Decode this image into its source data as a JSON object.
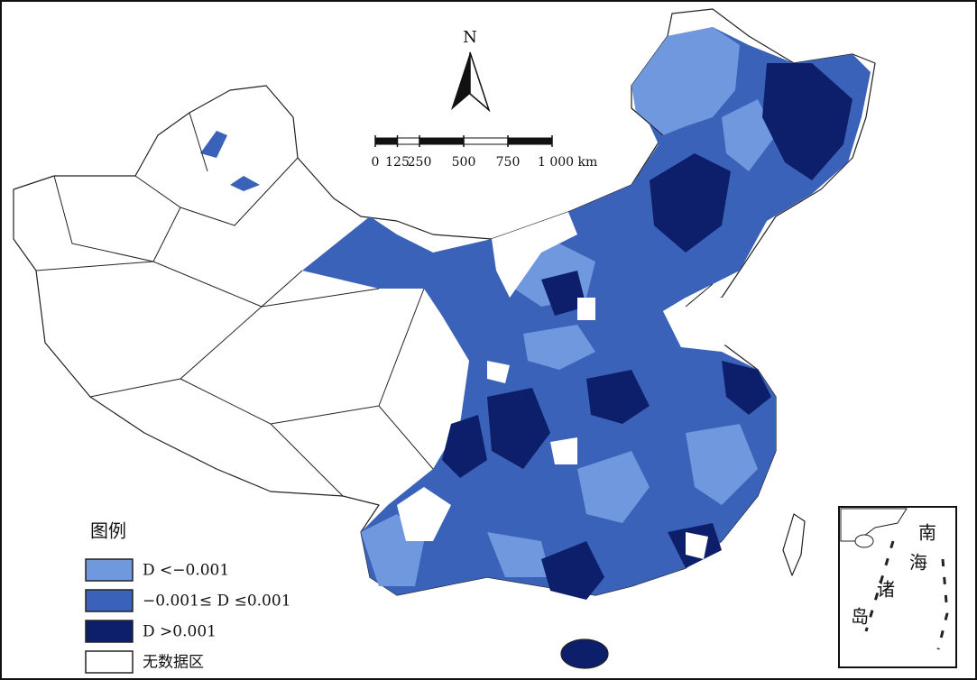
{
  "north_arrow": {
    "label": "N"
  },
  "scale_bar": {
    "ticks": [
      0,
      125,
      250,
      500,
      750,
      {
        "value": 1000,
        "label": "1 000 km"
      }
    ]
  },
  "legend": {
    "title": "图例",
    "items": [
      {
        "label": "D <−0.001",
        "color": "#6f98de"
      },
      {
        "label": "−0.001≤ D ≤0.001",
        "color": "#3a62b8"
      },
      {
        "label": "D >0.001",
        "color": "#0d1f6b"
      },
      {
        "label": "无数据区",
        "color": "#ffffff"
      }
    ]
  },
  "inset": {
    "labels": [
      "南",
      "海",
      "诸",
      "岛"
    ]
  }
}
